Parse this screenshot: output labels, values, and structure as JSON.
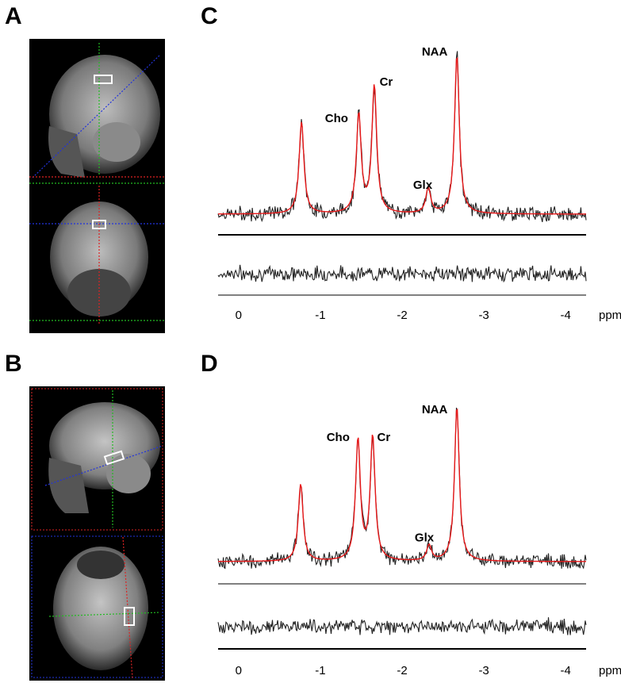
{
  "panels": {
    "A": {
      "letter": "A"
    },
    "B": {
      "letter": "B"
    },
    "C": {
      "letter": "C",
      "x_unit": "ppm",
      "ticks": [
        "0",
        "-1",
        "-2",
        "-3",
        "-4"
      ],
      "peaks": [
        {
          "label": "Cho",
          "ppm": -1.47,
          "height": 0.62
        },
        {
          "label": "Cr",
          "ppm": -1.66,
          "height": 0.8
        },
        {
          "label": "Glx",
          "ppm": -2.32,
          "height": 0.16
        },
        {
          "label": "NAA",
          "ppm": -2.67,
          "height": 1.0
        }
      ]
    },
    "D": {
      "letter": "D",
      "x_unit": "ppm",
      "ticks": [
        "0",
        "-1",
        "-2",
        "-3",
        "-4"
      ],
      "peaks": [
        {
          "label": "Cho",
          "ppm": -1.46,
          "height": 0.78
        },
        {
          "label": "Cr",
          "ppm": -1.64,
          "height": 0.8
        },
        {
          "label": "Glx",
          "ppm": -2.33,
          "height": 0.1
        },
        {
          "label": "NAA",
          "ppm": -2.67,
          "height": 1.0
        }
      ]
    }
  },
  "colors": {
    "fit": "#e8191a",
    "data": "#222222",
    "slice_blue": "#2233dd",
    "slice_green": "#22bb22",
    "slice_red": "#dd2222"
  },
  "chart_data": [
    {
      "type": "line",
      "panel": "C",
      "title": "",
      "xlabel": "ppm",
      "ylabel": "",
      "xlim": [
        0.25,
        -4.25
      ],
      "x_ticks": [
        0,
        -1,
        -2,
        -3,
        -4
      ],
      "series": [
        {
          "name": "",
          "peaks_ppm": [
            -0.77,
            -1.47,
            -1.66,
            -2.32,
            -2.67
          ],
          "relative_heights": [
            0.58,
            0.62,
            0.8,
            0.16,
            1.0
          ]
        }
      ],
      "annotations": [
        "Cho",
        "Cr",
        "Glx",
        "NAA"
      ]
    },
    {
      "type": "line",
      "panel": "D",
      "title": "",
      "xlabel": "ppm",
      "ylabel": "",
      "xlim": [
        0.25,
        -4.25
      ],
      "x_ticks": [
        0,
        -1,
        -2,
        -3,
        -4
      ],
      "series": [
        {
          "name": "",
          "peaks_ppm": [
            -0.76,
            -1.46,
            -1.64,
            -2.33,
            -2.67
          ],
          "relative_heights": [
            0.5,
            0.78,
            0.8,
            0.1,
            1.0
          ]
        }
      ],
      "annotations": [
        "Cho",
        "Cr",
        "Glx",
        "NAA"
      ]
    }
  ]
}
